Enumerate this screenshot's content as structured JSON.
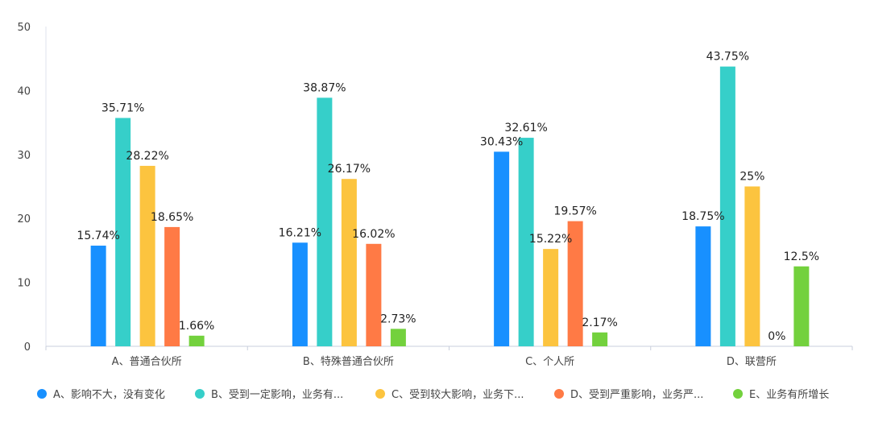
{
  "chart_data": {
    "type": "bar",
    "title": "",
    "xlabel": "",
    "ylabel": "",
    "ylim": [
      0,
      50
    ],
    "yticks": [
      0,
      10,
      20,
      30,
      40,
      50
    ],
    "grid": false,
    "legend_position": "bottom",
    "categories": [
      "A、普通合伙所",
      "B、特殊普通合伙所",
      "C、个人所",
      "D、联营所"
    ],
    "series": [
      {
        "name": "A、影响不大，没有变化",
        "legend_label": "A、影响不大，没有变化",
        "color": "#1890ff",
        "values": [
          15.74,
          16.21,
          30.43,
          18.75
        ],
        "labels": [
          "15.74%",
          "16.21%",
          "30.43%",
          "18.75%"
        ]
      },
      {
        "name": "B、受到一定影响，业务有所减少",
        "legend_label": "B、受到一定影响，业务有...",
        "color": "#36cfc9",
        "values": [
          35.71,
          38.87,
          32.61,
          43.75
        ],
        "labels": [
          "35.71%",
          "38.87%",
          "32.61%",
          "43.75%"
        ]
      },
      {
        "name": "C、受到较大影响，业务下降",
        "legend_label": "C、受到较大影响，业务下...",
        "color": "#fcc43f",
        "values": [
          28.22,
          26.17,
          15.22,
          25
        ],
        "labels": [
          "28.22%",
          "26.17%",
          "15.22%",
          "25%"
        ]
      },
      {
        "name": "D、受到严重影响，业务严重下降",
        "legend_label": "D、受到严重影响，业务严...",
        "color": "#ff7a45",
        "values": [
          18.65,
          16.02,
          19.57,
          0
        ],
        "labels": [
          "18.65%",
          "16.02%",
          "19.57%",
          "0%"
        ]
      },
      {
        "name": "E、业务有所增长",
        "legend_label": "E、业务有所增长",
        "color": "#73d13d",
        "values": [
          1.66,
          2.73,
          2.17,
          12.5
        ],
        "labels": [
          "1.66%",
          "2.73%",
          "2.17%",
          "12.5%"
        ]
      }
    ]
  }
}
